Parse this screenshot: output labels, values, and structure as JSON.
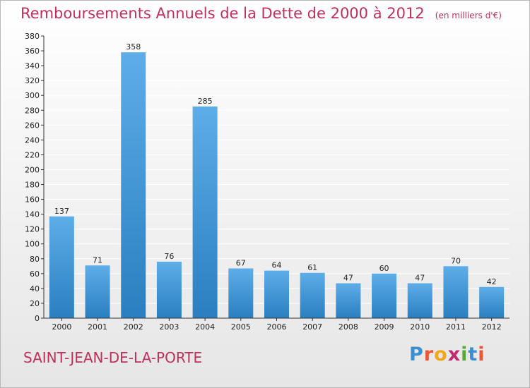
{
  "title": "Remboursements Annuels de la Dette de 2000 à 2012",
  "unit_note": "(en milliers d'€)",
  "commune": "SAINT-JEAN-DE-LA-PORTE",
  "logo": {
    "text": "Proxiti",
    "letter_colors": [
      "#3b8fd0",
      "#e8573a",
      "#f2a81d",
      "#c02a6e",
      "#5aa83a",
      "#3b8fd0",
      "#e8573a"
    ]
  },
  "colors": {
    "title": "#c0305a",
    "bar_light": "#5dade8",
    "bar_dark": "#2a7fc0",
    "grid": "#ffffff",
    "axis": "#333333"
  },
  "chart_data": {
    "type": "bar",
    "categories": [
      "2000",
      "2001",
      "2002",
      "2003",
      "2004",
      "2005",
      "2006",
      "2007",
      "2008",
      "2009",
      "2010",
      "2011",
      "2012"
    ],
    "values": [
      137,
      71,
      358,
      76,
      285,
      67,
      64,
      61,
      47,
      60,
      47,
      70,
      42
    ],
    "ylim": [
      0,
      380
    ],
    "ytick_step": 20,
    "grid": true,
    "data_labels": true
  }
}
